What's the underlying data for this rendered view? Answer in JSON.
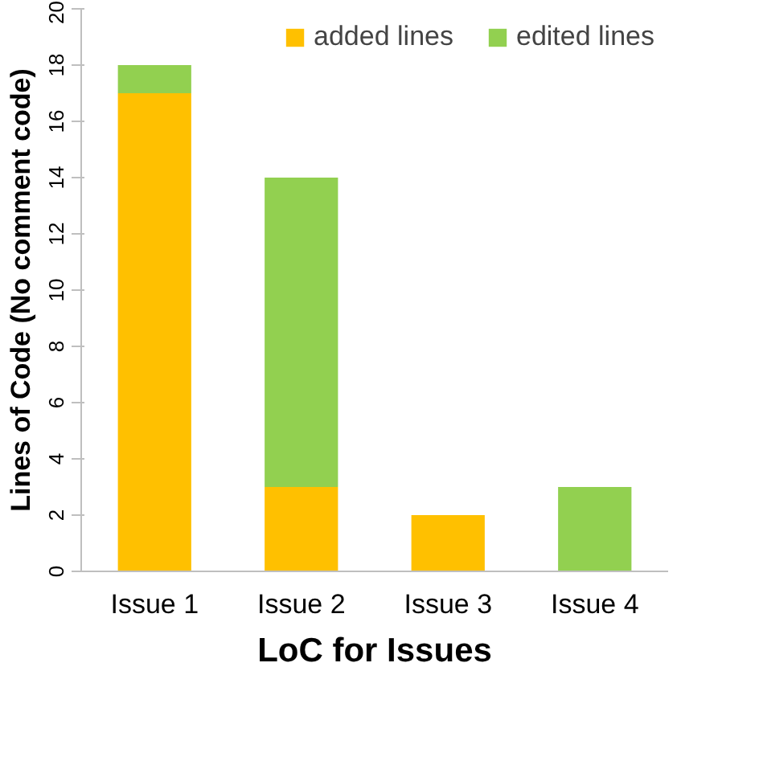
{
  "chart_data": {
    "type": "bar",
    "stacked": true,
    "xlabel": "LoC for Issues",
    "ylabel": "Lines of Code (No comment code)",
    "categories": [
      "Issue 1",
      "Issue 2",
      "Issue 3",
      "Issue 4"
    ],
    "series": [
      {
        "name": "added lines",
        "color": "#ffc000",
        "values": [
          17,
          3,
          2,
          0
        ]
      },
      {
        "name": "edited lines",
        "color": "#92d050",
        "values": [
          1,
          11,
          0,
          3
        ]
      }
    ],
    "ylim": [
      0,
      20
    ],
    "yticks": [
      0,
      2,
      4,
      6,
      8,
      10,
      12,
      14,
      16,
      18,
      20
    ],
    "grid": false,
    "legend": "top"
  }
}
